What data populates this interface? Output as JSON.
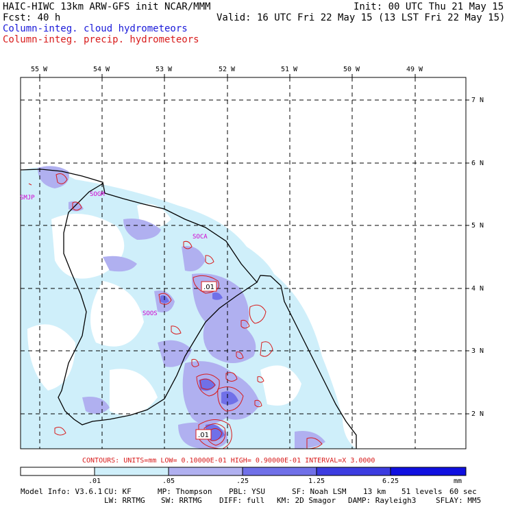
{
  "header": {
    "model_title": "HAIC-HIWC 13km ARW-GFS init   NCAR/MMM",
    "init_time": "Init: 00 UTC Thu 21 May 15",
    "forecast": "Fcst:   40 h",
    "valid_time": "Valid: 16 UTC Fri 22 May 15 (13 LST Fri 22 May 15)",
    "field_cloud": "Column-integ. cloud hydrometeors",
    "field_precip": "Column-integ. precip. hydrometeors"
  },
  "map": {
    "lon_labels": [
      "55 W",
      "54 W",
      "53 W",
      "52 W",
      "51 W",
      "50 W",
      "49 W"
    ],
    "lat_labels": [
      "7 N",
      "6 N",
      "5 N",
      "4 N",
      "3 N",
      "2 N"
    ],
    "stations": [
      "SMJP",
      "SOGM",
      "SOCA",
      "SOOS"
    ],
    "contour_labels": [
      ".01",
      ".01"
    ]
  },
  "contour_info": "CONTOURS:  UNITS=mm  LOW= 0.10000E-01  HIGH= 0.90000E-01  INTERVAL=X  3.0000",
  "colorbar": {
    "ticks": [
      ".01",
      ".05",
      ".25",
      "1.25",
      "6.25"
    ],
    "unit": "mm",
    "colors": [
      "#ffffff",
      "#cfeffa",
      "#b0b0f0",
      "#7070e8",
      "#3c3ce0",
      "#1010e0"
    ]
  },
  "footer": {
    "line1": [
      "Model Info: V3.6.1",
      "CU: KF",
      "MP: Thompson",
      "PBL: YSU",
      "SF: Noah LSM",
      "13 km",
      "51 levels",
      "60 sec"
    ],
    "line2": [
      "LW: RRTMG",
      "SW: RRTMG",
      "DIFF: full",
      "KM: 2D Smagor",
      "DAMP: Rayleigh3",
      "SFLAY: MM5"
    ]
  },
  "legend_colors": {
    "cloud": "#1a1ad9",
    "precip": "#d81a1a",
    "station": "#d000d0"
  }
}
